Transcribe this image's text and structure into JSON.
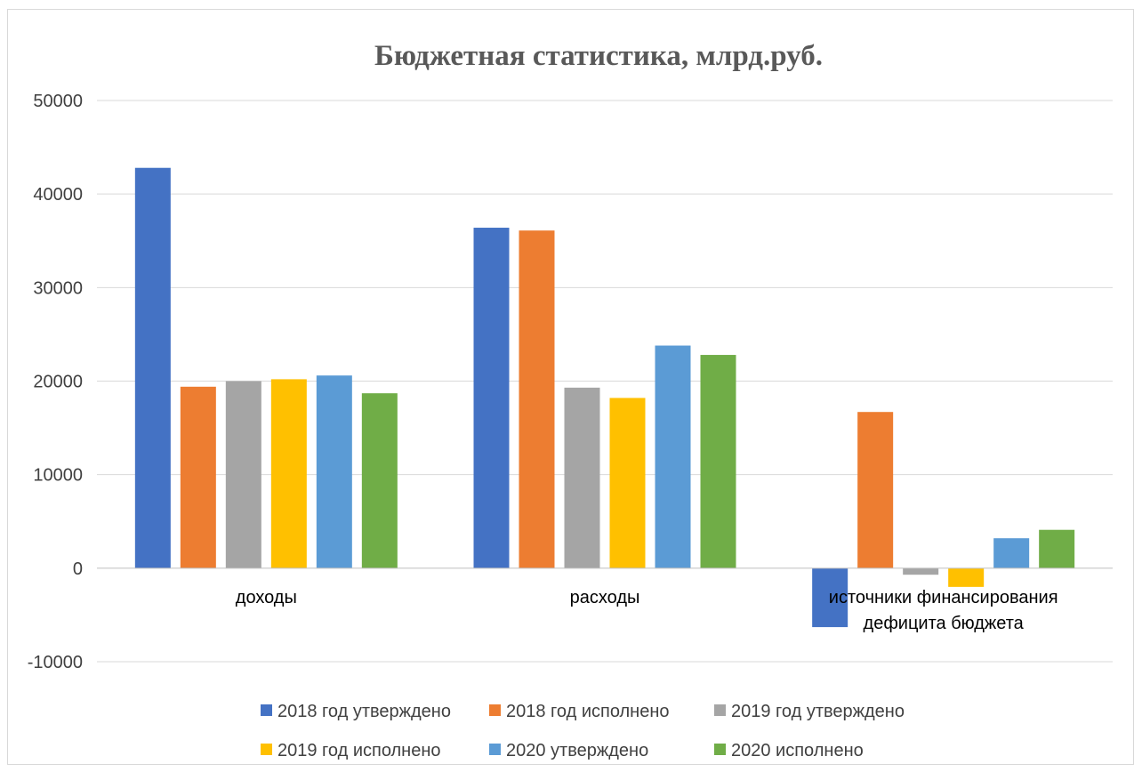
{
  "chart_data": {
    "type": "bar",
    "title": "Бюджетная статистика, млрд.руб.",
    "xlabel": "",
    "ylabel": "",
    "ylim": [
      -10000,
      50000
    ],
    "yticks": [
      50000,
      40000,
      30000,
      20000,
      10000,
      0,
      -10000
    ],
    "grid": true,
    "legend_position": "bottom",
    "categories": [
      [
        "доходы"
      ],
      [
        "расходы"
      ],
      [
        "источники финансирования",
        "дефицита бюджета"
      ]
    ],
    "series": [
      {
        "name": "2018 год утверждено",
        "color": "#4472c4",
        "values": [
          42800,
          36400,
          -6300
        ]
      },
      {
        "name": "2018 год исполнено",
        "color": "#ed7d31",
        "values": [
          19400,
          36100,
          16700
        ]
      },
      {
        "name": "2019 год утверждено",
        "color": "#a5a5a5",
        "values": [
          20000,
          19300,
          -700
        ]
      },
      {
        "name": "2019 год исполнено",
        "color": "#ffc000",
        "values": [
          20200,
          18200,
          -2000
        ]
      },
      {
        "name": "2020 утверждено",
        "color": "#5b9bd5",
        "values": [
          20600,
          23800,
          3200
        ]
      },
      {
        "name": "2020 исполнено",
        "color": "#70ad47",
        "values": [
          18700,
          22800,
          4100
        ]
      }
    ]
  }
}
